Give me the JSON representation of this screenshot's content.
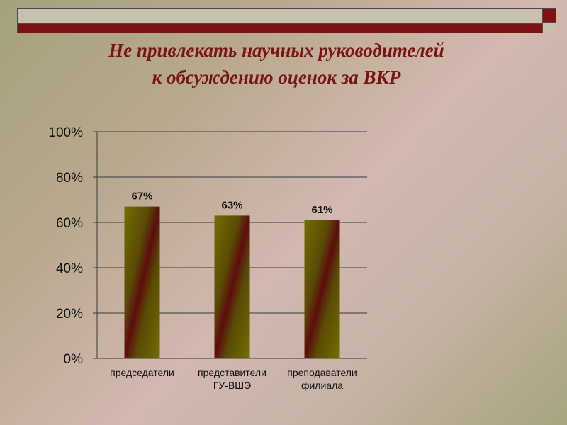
{
  "title": {
    "line1": "Не привлекать научных руководителей",
    "line2": "к обсуждению оценок за ВКР"
  },
  "colors": {
    "title": "#7a1313",
    "accent_bar": "#7e1111",
    "bar_light": "#707000",
    "bar_dark": "#5c0d0d"
  },
  "chart_data": {
    "type": "bar",
    "categories": [
      [
        "председатели"
      ],
      [
        "представители",
        "ГУ-ВШЭ"
      ],
      [
        "преподаватели",
        "филиала"
      ]
    ],
    "values": [
      67,
      63,
      61
    ],
    "value_labels": [
      "67%",
      "63%",
      "61%"
    ],
    "y_ticks": [
      0,
      20,
      40,
      60,
      80,
      100
    ],
    "y_tick_labels": [
      "0%",
      "20%",
      "40%",
      "60%",
      "80%",
      "100%"
    ],
    "ylim": [
      0,
      100
    ],
    "grid": true,
    "legend": "none"
  }
}
